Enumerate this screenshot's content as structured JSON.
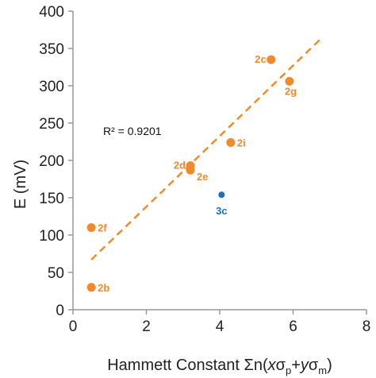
{
  "chart_data": {
    "type": "scatter",
    "xlim": [
      0,
      8
    ],
    "ylim": [
      0,
      400
    ],
    "x_ticks": [
      "0",
      "2",
      "4",
      "6",
      "8"
    ],
    "y_ticks": [
      "0",
      "50",
      "100",
      "150",
      "200",
      "250",
      "300",
      "350",
      "400"
    ],
    "ylabel": "E (mV)",
    "xlabel": {
      "prefix": "Hammett Constant Σn(",
      "x": "x",
      "sigma": "σ",
      "sub_p": "p",
      "plus": "+",
      "y": "y",
      "sub_m": "m",
      "suffix": ")"
    },
    "grid": false,
    "annotation": "R² = 0.9201",
    "series": [
      {
        "color": "#F08A2C",
        "points": [
          {
            "label": "2b",
            "x": 0.5,
            "y": 30
          },
          {
            "label": "2f",
            "x": 0.5,
            "y": 110
          },
          {
            "label": "2d",
            "x": 3.2,
            "y": 193
          },
          {
            "label": "2e",
            "x": 3.2,
            "y": 187
          },
          {
            "label": "2i",
            "x": 4.3,
            "y": 224
          },
          {
            "label": "2c",
            "x": 5.4,
            "y": 335
          },
          {
            "label": "2g",
            "x": 5.9,
            "y": 306
          }
        ]
      },
      {
        "color": "#1F6FC0",
        "points": [
          {
            "label": "3c",
            "x": 4.05,
            "y": 154
          }
        ]
      }
    ],
    "trendline": {
      "color": "#F08A2C",
      "x": [
        0.5,
        6.8
      ],
      "y": [
        67,
        365
      ]
    }
  }
}
